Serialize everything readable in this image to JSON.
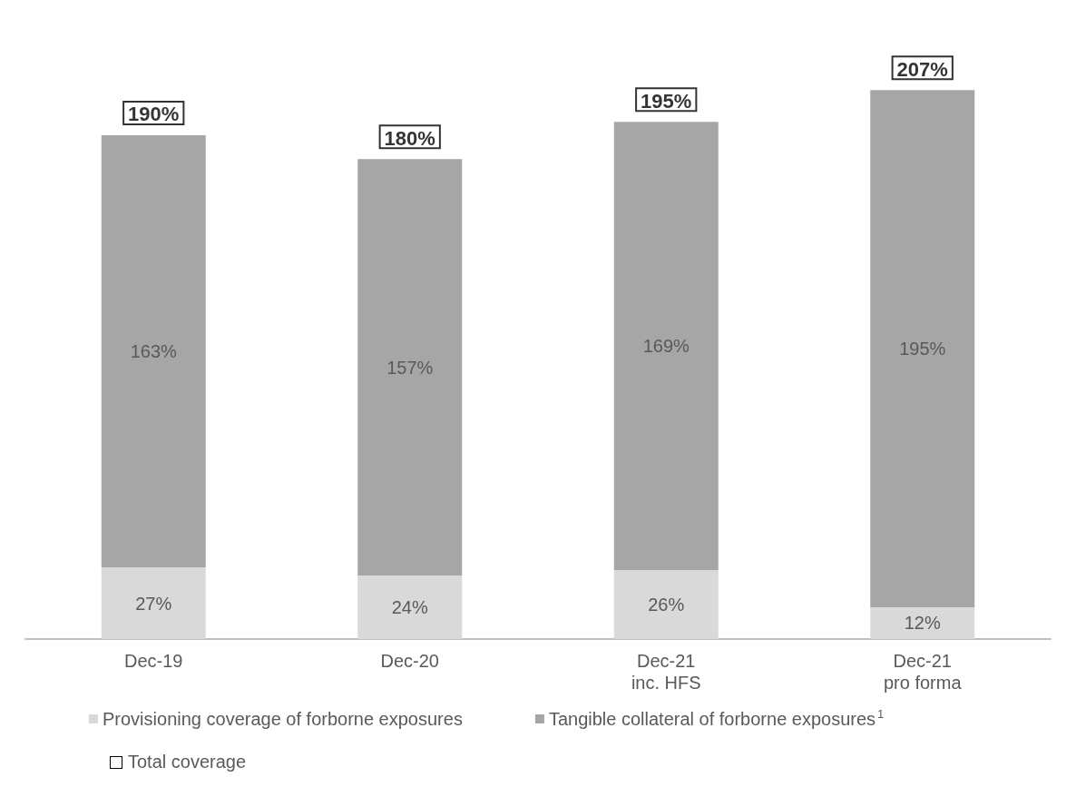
{
  "chart_data": {
    "type": "bar",
    "stacked": true,
    "legend": "bottom left",
    "categories": [
      "Dec-19",
      "Dec-20",
      "Dec-21\ninc. HFS",
      "Dec-21\npro forma"
    ],
    "series": [
      {
        "name": "Provisioning coverage of forborne exposures",
        "color": "#d9d9d9",
        "values": [
          27,
          24,
          26,
          12
        ],
        "value_labels": [
          "27%",
          "24%",
          "26%",
          "12%"
        ]
      },
      {
        "name": "Tangible collateral of forborne exposures$^{1}$",
        "color": "#a6a6a6",
        "values": [
          163,
          157,
          169,
          195
        ],
        "value_labels": [
          "163%",
          "157%",
          "169%",
          "195%"
        ]
      }
    ],
    "totals": [
      "190%",
      "180%",
      "195%",
      "207%"
    ],
    "annotations": [
      "Total coverage"
    ]
  }
}
